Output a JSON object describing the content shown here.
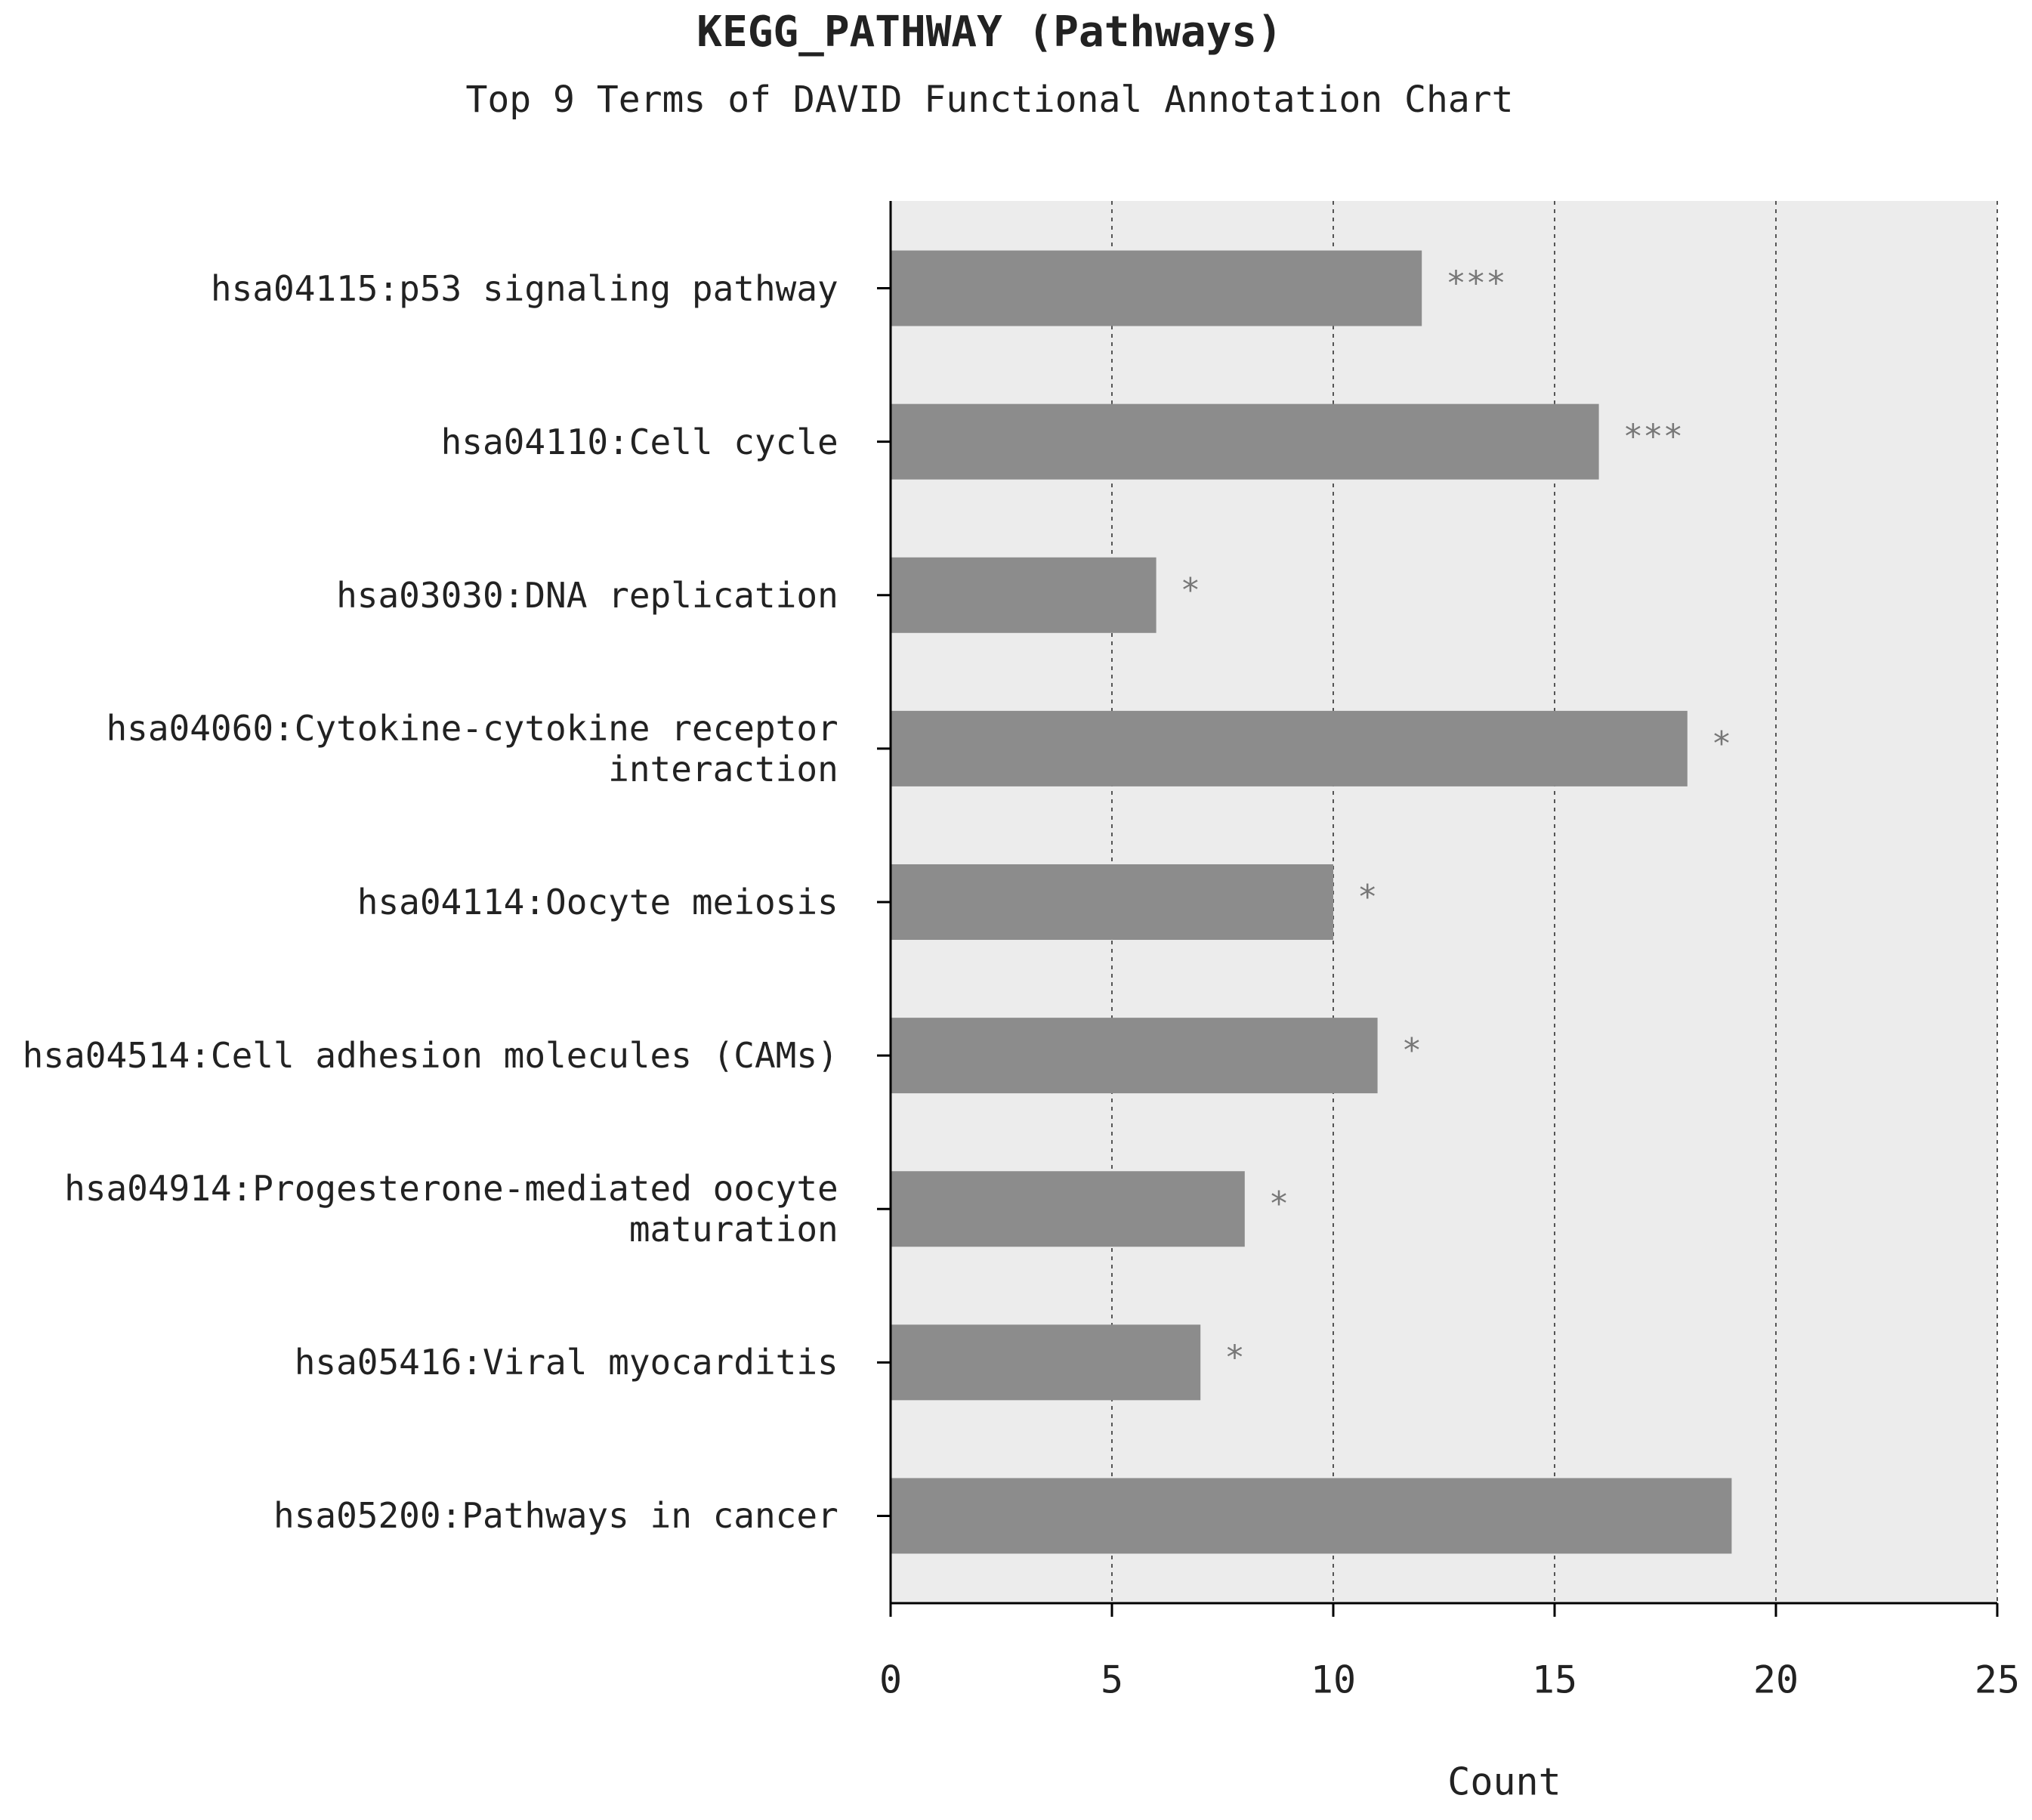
{
  "chart_data": {
    "type": "bar",
    "horizontal": true,
    "title": "KEGG_PATHWAY (Pathways)",
    "subtitle": "Top 9 Terms of DAVID Functional Annotation Chart",
    "x_label": "Count",
    "categories": [
      "hsa04115:p53 signaling pathway",
      "hsa04110:Cell cycle",
      "hsa03030:DNA replication",
      "hsa04060:Cytokine-cytokine receptor interaction",
      "hsa04114:Oocyte meiosis",
      "hsa04514:Cell adhesion molecules (CAMs)",
      "hsa04914:Progesterone-mediated oocyte maturation",
      "hsa05416:Viral myocarditis",
      "hsa05200:Pathways in cancer"
    ],
    "values": [
      12,
      16,
      6,
      18,
      10,
      11,
      8,
      7,
      19
    ],
    "annotations": [
      "***",
      "***",
      "*",
      "*",
      "*",
      "*",
      "*",
      "*",
      null
    ],
    "color": "#8c8c8c",
    "xlim": [
      0,
      25
    ],
    "xticks": [
      0,
      5,
      10,
      15,
      20,
      25
    ],
    "grid": true
  }
}
